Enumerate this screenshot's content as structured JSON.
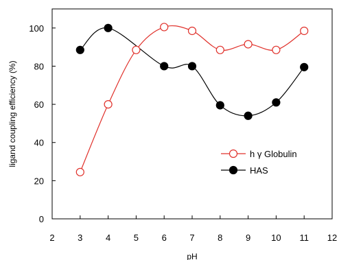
{
  "chart_data": {
    "type": "line",
    "title": "",
    "xlabel": "pH",
    "ylabel": "ligand coupling efficiency (%)",
    "xlim": [
      2,
      12
    ],
    "ylim": [
      0,
      110
    ],
    "xticks": [
      2,
      3,
      4,
      5,
      6,
      7,
      8,
      9,
      10,
      11,
      12
    ],
    "yticks": [
      0,
      20,
      40,
      60,
      80,
      100
    ],
    "grid": false,
    "legend_position": "right, lower-middle",
    "series": [
      {
        "name": "h γ Globulin",
        "marker": "open-circle",
        "color": "#e0302a",
        "x": [
          3,
          4,
          5,
          6,
          7,
          8,
          9,
          10,
          11
        ],
        "y": [
          24.5,
          60,
          88.5,
          100.5,
          98.5,
          88.5,
          91.5,
          88.5,
          98.5
        ]
      },
      {
        "name": "HAS",
        "marker": "filled-circle",
        "color": "#000000",
        "x": [
          3,
          4,
          5,
          6,
          7,
          8,
          9,
          10,
          11
        ],
        "y": [
          88.5,
          100,
          null,
          80,
          80,
          59.5,
          54,
          61,
          79.5
        ],
        "curve_through": [
          [
            3,
            88.5
          ],
          [
            4,
            100
          ],
          [
            6,
            80
          ],
          [
            7,
            80
          ],
          [
            8,
            59.5
          ],
          [
            9,
            54
          ],
          [
            10,
            61
          ],
          [
            11,
            79.5
          ]
        ]
      }
    ]
  }
}
